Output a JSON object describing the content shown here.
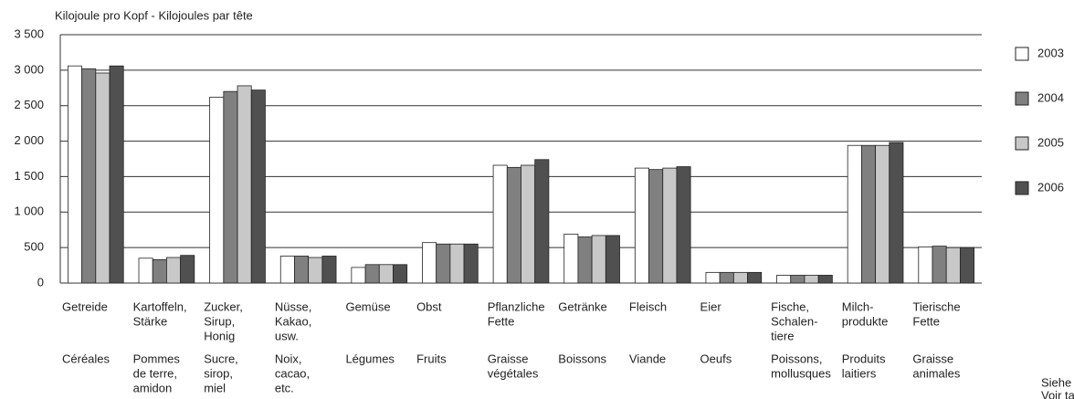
{
  "chart_data": {
    "type": "bar",
    "title": "Kilojoule pro Kopf  -  Kilojoules par tête",
    "categories": [
      {
        "de": [
          "Getreide"
        ],
        "fr": [
          "Céréales"
        ]
      },
      {
        "de": [
          "Kartoffeln,",
          "Stärke"
        ],
        "fr": [
          "Pommes",
          "de terre,",
          "amidon"
        ]
      },
      {
        "de": [
          "Zucker,",
          "Sirup,",
          "Honig"
        ],
        "fr": [
          "Sucre,",
          "sirop,",
          "miel"
        ]
      },
      {
        "de": [
          "Nüsse,",
          "Kakao,",
          "usw."
        ],
        "fr": [
          "Noix,",
          "cacao,",
          "etc."
        ]
      },
      {
        "de": [
          "Gemüse"
        ],
        "fr": [
          "Légumes"
        ]
      },
      {
        "de": [
          "Obst"
        ],
        "fr": [
          "Fruits"
        ]
      },
      {
        "de": [
          "Pflanzliche",
          "Fette"
        ],
        "fr": [
          "Graisse",
          "végétales"
        ]
      },
      {
        "de": [
          "Getränke"
        ],
        "fr": [
          "Boissons"
        ]
      },
      {
        "de": [
          "Fleisch"
        ],
        "fr": [
          "Viande"
        ]
      },
      {
        "de": [
          "Eier"
        ],
        "fr": [
          "Oeufs"
        ]
      },
      {
        "de": [
          "Fische,",
          "Schalen-",
          "tiere"
        ],
        "fr": [
          "Poissons,",
          "mollusques"
        ]
      },
      {
        "de": [
          "Milch-",
          "produkte"
        ],
        "fr": [
          "Produits",
          "laitiers"
        ]
      },
      {
        "de": [
          "Tierische",
          "Fette"
        ],
        "fr": [
          "Graisse",
          "animales"
        ]
      }
    ],
    "series": [
      {
        "name": "2003",
        "color": "#ffffff",
        "values": [
          3060,
          350,
          2620,
          380,
          220,
          570,
          1660,
          690,
          1620,
          150,
          110,
          1940,
          510
        ]
      },
      {
        "name": "2004",
        "color": "#808080",
        "values": [
          3020,
          330,
          2700,
          380,
          260,
          550,
          1630,
          650,
          1600,
          150,
          110,
          1940,
          520
        ]
      },
      {
        "name": "2005",
        "color": "#c8c8c8",
        "values": [
          2960,
          360,
          2780,
          360,
          260,
          550,
          1660,
          670,
          1620,
          150,
          110,
          1940,
          500
        ]
      },
      {
        "name": "2006",
        "color": "#505050",
        "values": [
          3060,
          390,
          2720,
          380,
          260,
          550,
          1740,
          670,
          1640,
          150,
          110,
          1980,
          500
        ]
      }
    ],
    "ylim": [
      0,
      3500
    ],
    "yticks": [
      0,
      500,
      {
        "value": 1000,
        "label": "1 000"
      },
      {
        "value": 1500,
        "label": "1 500"
      },
      {
        "value": 2000,
        "label": "2 000"
      },
      {
        "value": 2500,
        "label": "2 500"
      },
      {
        "value": 3000,
        "label": "3 000"
      },
      {
        "value": 3500,
        "label": "3 500"
      }
    ],
    "grid": true,
    "legend": "right",
    "annotations": [
      "Siehe",
      "Voir ta"
    ]
  }
}
